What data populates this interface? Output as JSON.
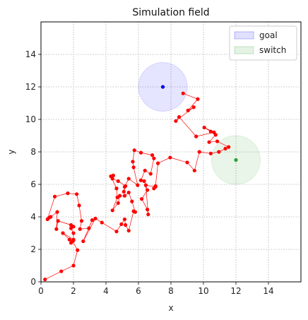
{
  "chart_data": {
    "type": "scatter",
    "title": "Simulation field",
    "xlabel": "x",
    "ylabel": "y",
    "xlim": [
      0,
      16
    ],
    "ylim": [
      0,
      16
    ],
    "xticks": [
      0,
      2,
      4,
      6,
      8,
      10,
      12,
      14
    ],
    "yticks": [
      0,
      2,
      4,
      6,
      8,
      10,
      12,
      14
    ],
    "grid": true,
    "grid_style": "dotted",
    "legend_placement": "top-right",
    "legend": [
      {
        "label": "goal",
        "color": "#0000ff"
      },
      {
        "label": "switch",
        "color": "#2ca02c"
      }
    ],
    "regions": [
      {
        "label": "goal",
        "center": [
          7.5,
          12.0
        ],
        "radius": 1.5,
        "color": "#0000ff"
      },
      {
        "label": "switch",
        "center": [
          12.0,
          7.5
        ],
        "radius": 1.5,
        "color": "#2ca02c"
      }
    ],
    "path": {
      "color": "#ff0000",
      "points": [
        [
          0.25,
          0.15
        ],
        [
          1.25,
          0.65
        ],
        [
          2.0,
          1.0
        ],
        [
          2.25,
          1.95
        ],
        [
          1.95,
          2.5
        ],
        [
          1.85,
          2.4
        ],
        [
          2.0,
          2.55
        ],
        [
          1.75,
          2.6
        ],
        [
          1.35,
          3.0
        ],
        [
          2.0,
          2.6
        ],
        [
          2.0,
          3.0
        ],
        [
          1.85,
          3.3
        ],
        [
          2.0,
          3.4
        ],
        [
          1.85,
          3.5
        ],
        [
          1.05,
          3.75
        ],
        [
          0.95,
          3.25
        ],
        [
          1.0,
          4.3
        ],
        [
          0.6,
          4.0
        ],
        [
          0.5,
          3.95
        ],
        [
          0.4,
          3.85
        ],
        [
          0.85,
          5.25
        ],
        [
          1.65,
          5.45
        ],
        [
          2.2,
          5.4
        ],
        [
          2.35,
          4.7
        ],
        [
          2.5,
          3.75
        ],
        [
          2.4,
          3.25
        ],
        [
          2.95,
          3.3
        ],
        [
          3.15,
          3.8
        ],
        [
          2.6,
          2.5
        ],
        [
          3.35,
          3.9
        ],
        [
          3.75,
          3.65
        ],
        [
          4.65,
          3.1
        ],
        [
          4.95,
          3.55
        ],
        [
          5.15,
          3.85
        ],
        [
          5.2,
          3.5
        ],
        [
          5.4,
          3.15
        ],
        [
          5.7,
          4.35
        ],
        [
          5.8,
          4.3
        ],
        [
          5.6,
          4.95
        ],
        [
          5.4,
          5.5
        ],
        [
          5.15,
          5.3
        ],
        [
          4.85,
          5.3
        ],
        [
          4.75,
          4.85
        ],
        [
          4.4,
          4.4
        ],
        [
          4.7,
          5.2
        ],
        [
          4.65,
          5.75
        ],
        [
          4.3,
          6.5
        ],
        [
          4.45,
          6.55
        ],
        [
          4.4,
          6.35
        ],
        [
          4.75,
          6.2
        ],
        [
          5.2,
          5.9
        ],
        [
          5.1,
          5.55
        ],
        [
          5.15,
          5.85
        ],
        [
          5.4,
          6.35
        ],
        [
          5.95,
          5.95
        ],
        [
          5.7,
          7.05
        ],
        [
          5.65,
          7.4
        ],
        [
          5.75,
          8.1
        ],
        [
          6.15,
          7.95
        ],
        [
          6.85,
          7.8
        ],
        [
          6.95,
          7.6
        ],
        [
          6.75,
          6.65
        ],
        [
          6.4,
          6.85
        ],
        [
          6.15,
          6.25
        ],
        [
          6.35,
          6.2
        ],
        [
          6.55,
          5.65
        ],
        [
          6.2,
          5.1
        ],
        [
          6.55,
          4.45
        ],
        [
          6.6,
          4.15
        ],
        [
          6.45,
          5.95
        ],
        [
          7.05,
          5.85
        ],
        [
          6.95,
          5.75
        ],
        [
          7.05,
          5.9
        ],
        [
          7.2,
          7.3
        ],
        [
          7.95,
          7.65
        ],
        [
          9.0,
          7.35
        ],
        [
          9.45,
          6.85
        ],
        [
          9.75,
          8.0
        ],
        [
          10.45,
          7.9
        ],
        [
          10.95,
          8.0
        ],
        [
          11.35,
          8.2
        ],
        [
          11.55,
          8.3
        ],
        [
          10.85,
          8.65
        ],
        [
          10.35,
          8.6
        ],
        [
          10.75,
          9.05
        ],
        [
          10.45,
          9.25
        ],
        [
          10.05,
          9.5
        ],
        [
          10.65,
          9.2
        ],
        [
          9.55,
          8.95
        ],
        [
          8.5,
          10.15
        ],
        [
          8.3,
          9.9
        ],
        [
          9.4,
          10.75
        ],
        [
          9.05,
          10.55
        ],
        [
          9.65,
          11.25
        ],
        [
          8.75,
          11.6
        ]
      ]
    },
    "goal_marker": {
      "x": 7.5,
      "y": 12.0,
      "color": "#0000ff"
    },
    "switch_marker": {
      "x": 12.0,
      "y": 7.5,
      "color": "#2ca02c"
    }
  }
}
